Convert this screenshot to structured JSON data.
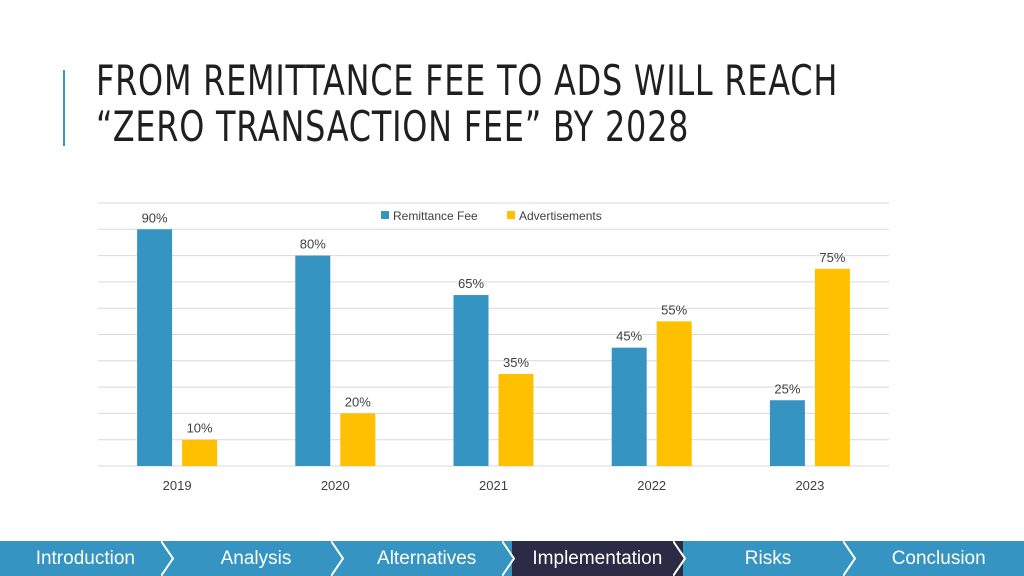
{
  "title": {
    "line1": "FROM REMITTANCE FEE TO ADS WILL REACH",
    "line2": "“ZERO TRANSACTION FEE” BY 2028"
  },
  "colors": {
    "accent": "#3594c2",
    "remittance": "#3594c2",
    "ads": "#ffc000",
    "nav_bg": "#3594c2",
    "nav_active": "#2b2b45"
  },
  "nav": {
    "items": [
      {
        "label": "Introduction",
        "active": false
      },
      {
        "label": "Analysis",
        "active": false
      },
      {
        "label": "Alternatives",
        "active": false
      },
      {
        "label": "Implementation",
        "active": true
      },
      {
        "label": "Risks",
        "active": false
      },
      {
        "label": "Conclusion",
        "active": false
      }
    ]
  },
  "chart_data": {
    "type": "bar",
    "categories": [
      "2019",
      "2020",
      "2021",
      "2022",
      "2023"
    ],
    "series": [
      {
        "name": "Remittance Fee",
        "values": [
          90,
          80,
          65,
          45,
          25
        ],
        "labels": [
          "90%",
          "80%",
          "65%",
          "45%",
          "25%"
        ]
      },
      {
        "name": "Advertisements",
        "values": [
          10,
          20,
          35,
          55,
          75
        ],
        "labels": [
          "10%",
          "20%",
          "35%",
          "55%",
          "75%"
        ]
      }
    ],
    "ylim": [
      0,
      100
    ],
    "grid": true,
    "legend": "top-center"
  }
}
